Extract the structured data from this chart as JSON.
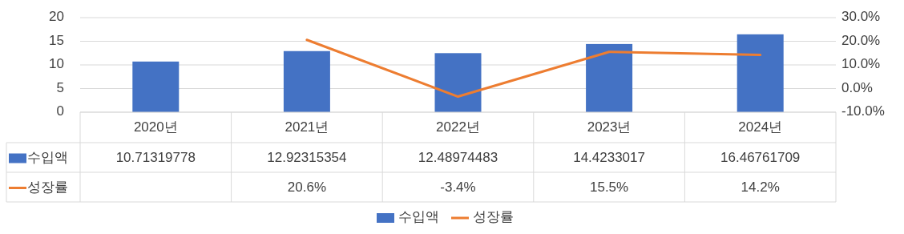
{
  "chart_data": {
    "type": "bar",
    "categories": [
      "2020년",
      "2021년",
      "2022년",
      "2023년",
      "2024년"
    ],
    "series": [
      {
        "name": "수입액",
        "color": "#4472c4",
        "values": [
          10.71319778,
          12.92315354,
          12.48974483,
          14.4233017,
          16.46761709
        ],
        "value_labels": [
          "10.71319778",
          "12.92315354",
          "12.48974483",
          "14.4233017",
          "16.46761709"
        ]
      },
      {
        "name": "성장률",
        "type": "line",
        "axis": "y2",
        "color": "#ed7d31",
        "values": [
          null,
          20.6,
          -3.4,
          15.5,
          14.2
        ],
        "value_labels": [
          null,
          "20.6%",
          "-3.4%",
          "15.5%",
          "14.2%"
        ]
      }
    ],
    "ylim": [
      0,
      20
    ],
    "yticks": [
      0,
      5,
      10,
      15,
      20
    ],
    "y2lim": [
      -10,
      30
    ],
    "y2ticks": [
      {
        "value": -10,
        "label": "-10.0%"
      },
      {
        "value": 0,
        "label": "0.0%"
      },
      {
        "value": 10,
        "label": "10.0%"
      },
      {
        "value": 20,
        "label": "20.0%"
      },
      {
        "value": 30,
        "label": "30.0%"
      }
    ],
    "grid": "y",
    "legend": "bottom"
  }
}
